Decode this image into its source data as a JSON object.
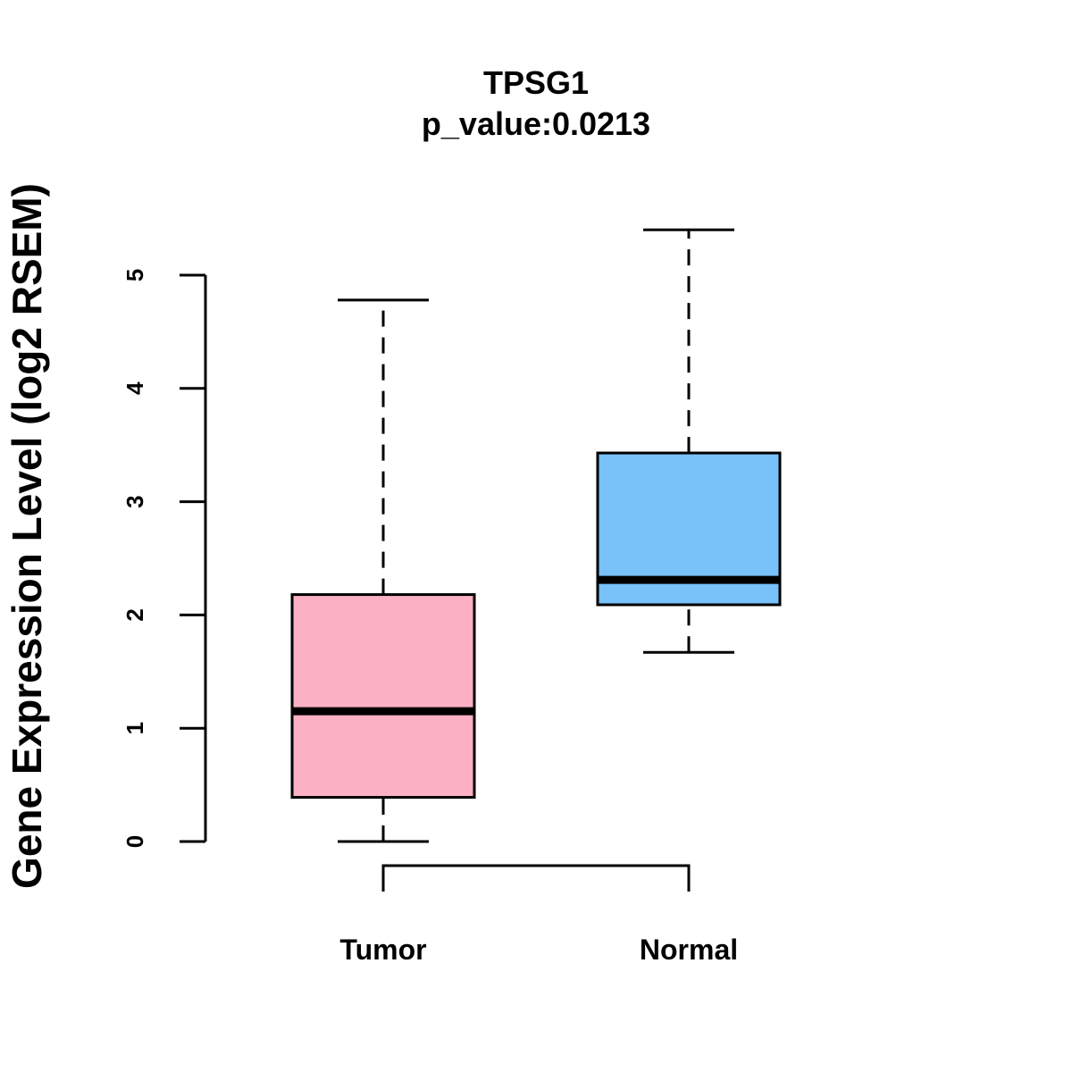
{
  "chart_data": {
    "type": "boxplot",
    "title": "TPSG1",
    "subtitle": "p_value:0.0213",
    "xlabel": "",
    "ylabel": "Gene Expression Level (log2 RSEM)",
    "ylim": [
      0,
      5
    ],
    "yticks": [
      0,
      1,
      2,
      3,
      4,
      5
    ],
    "significance_bracket": true,
    "groups": [
      {
        "name": "Tumor",
        "color": "#FBB0C3",
        "min": 0.0,
        "q1": 0.39,
        "median": 1.15,
        "q3": 2.18,
        "max": 4.78
      },
      {
        "name": "Normal",
        "color": "#78C1F9",
        "min": 1.67,
        "q1": 2.09,
        "median": 2.31,
        "q3": 3.43,
        "max": 5.4
      }
    ]
  }
}
